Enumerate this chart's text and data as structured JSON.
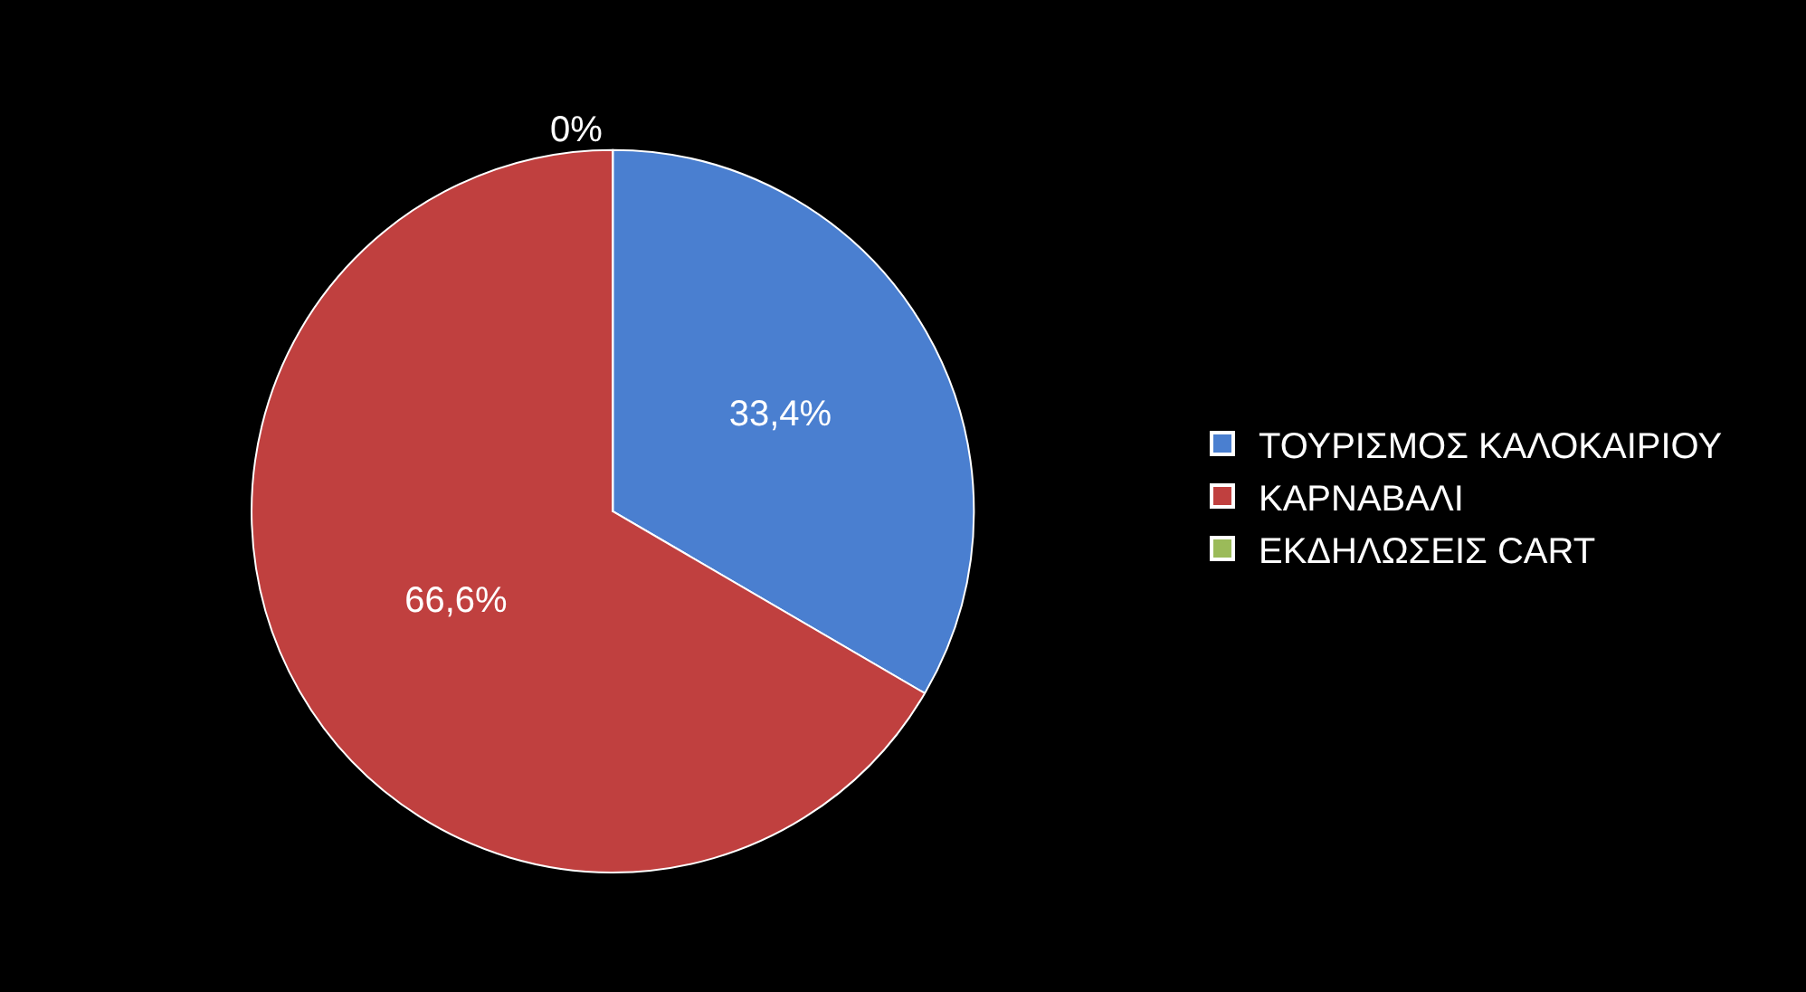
{
  "chart_data": {
    "type": "pie",
    "categories": [
      "ΤΟΥΡΙΣΜΟΣ ΚΑΛΟΚΑΙΡΙΟΥ",
      "ΚΑΡΝΑΒΑΛΙ",
      "ΕΚΔΗΛΩΣΕΙΣ CART"
    ],
    "values": [
      33.4,
      66.6,
      0
    ],
    "value_labels": [
      "33,4%",
      "66,6%",
      "0%"
    ],
    "colors": [
      "#4a7fd0",
      "#c0403f",
      "#9bbb59"
    ],
    "legend": "right"
  }
}
